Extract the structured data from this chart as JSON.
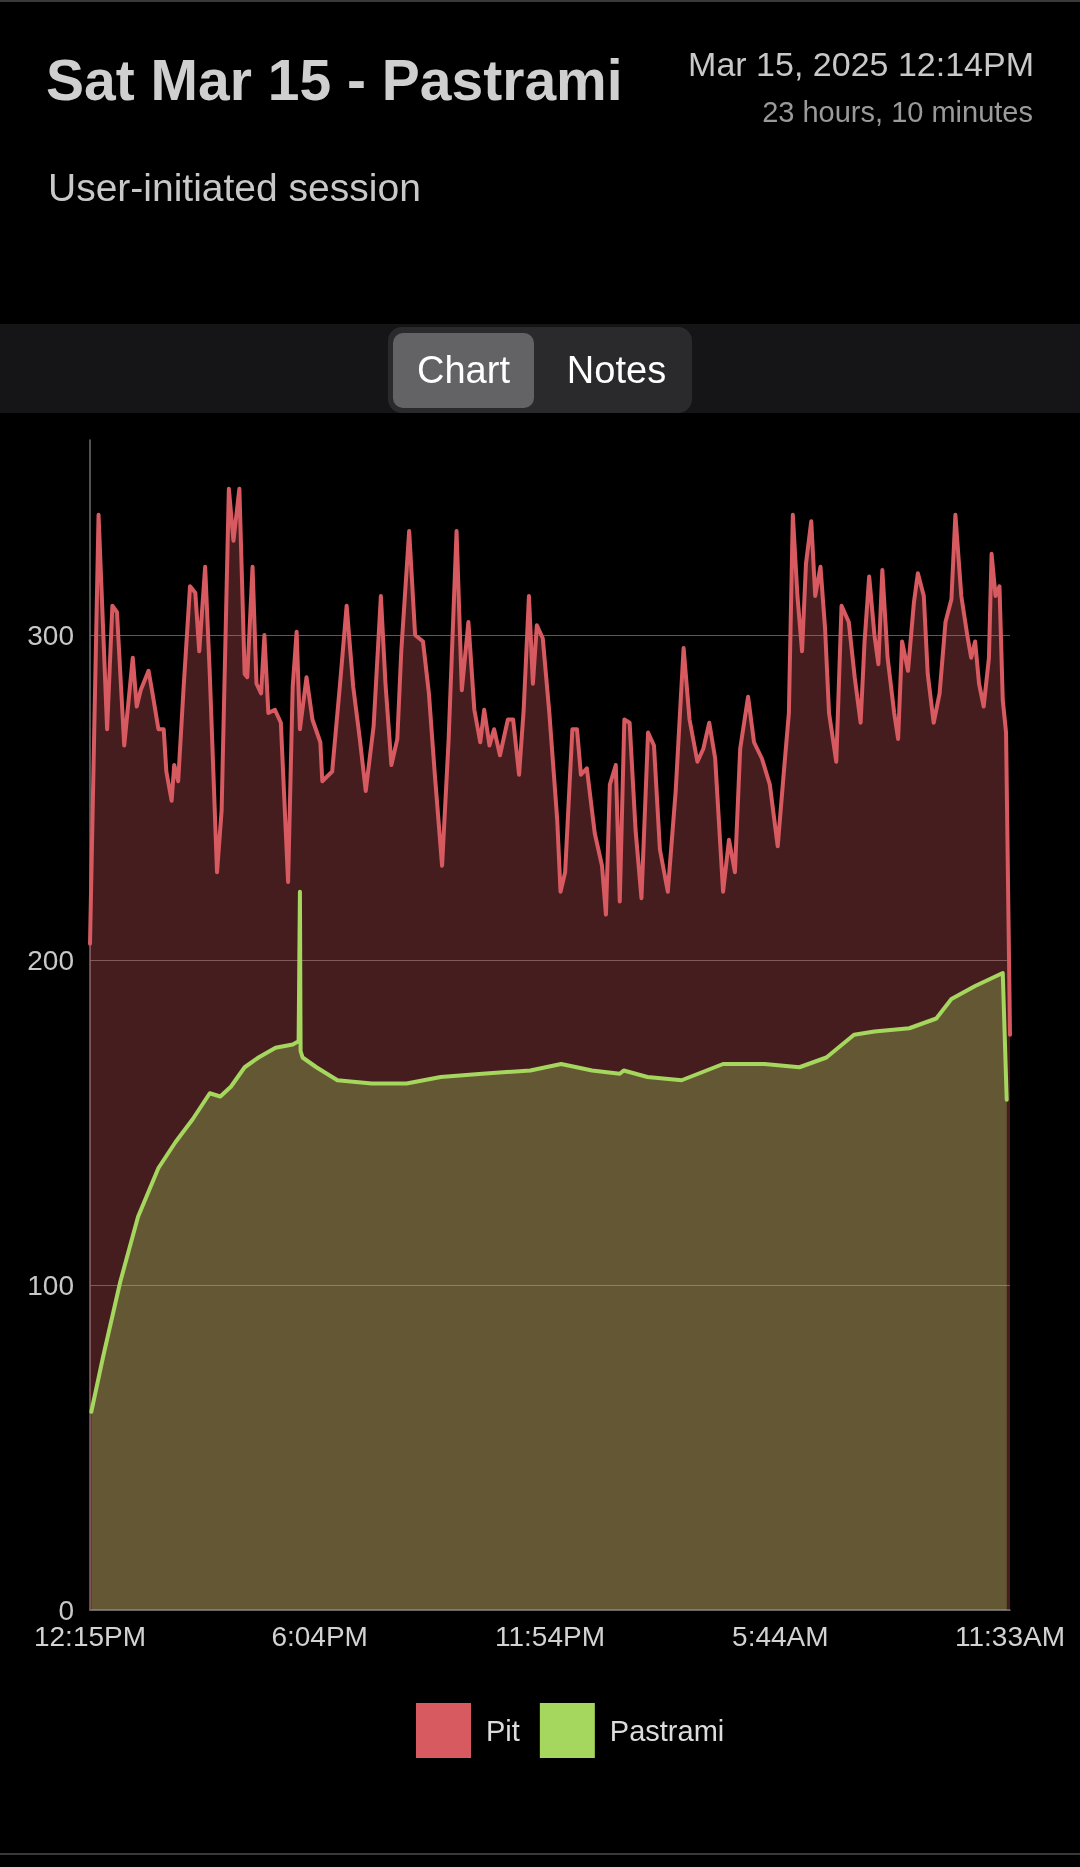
{
  "chart_data": {
    "type": "area",
    "title": "Sat Mar 15 - Pastrami",
    "subtitle": "User-initiated session",
    "annotations": [
      "Mar 15, 2025 12:14PM",
      "23 hours, 10 minutes",
      "Chart",
      "Notes"
    ],
    "xlim": [
      "2025-03-15T12:15",
      "2025-03-16T11:33"
    ],
    "xticks": [
      {
        "value": "2025-03-15T12:15",
        "label": "12:15PM"
      },
      {
        "value": "2025-03-15T18:04",
        "label": "6:04PM"
      },
      {
        "value": "2025-03-15T23:54",
        "label": "11:54PM"
      },
      {
        "value": "2025-03-16T05:44",
        "label": "5:44AM"
      },
      {
        "value": "2025-03-16T11:33",
        "label": "11:33AM"
      }
    ],
    "ylim": [
      0,
      360
    ],
    "yticks": [
      0,
      100,
      200,
      300
    ],
    "grid": "y",
    "legend": "bottom",
    "marker": "none",
    "line_style": "solid",
    "series": [
      {
        "name": "Pit",
        "color": "#d65a60",
        "x": [
          "2025-03-15T12:15",
          "2025-03-15T12:28",
          "2025-03-15T12:41",
          "2025-03-15T12:49",
          "2025-03-15T12:56",
          "2025-03-15T13:07",
          "2025-03-15T13:20",
          "2025-03-15T13:26",
          "2025-03-15T13:32",
          "2025-03-15T13:44",
          "2025-03-15T13:50",
          "2025-03-15T13:59",
          "2025-03-15T14:07",
          "2025-03-15T14:11",
          "2025-03-15T14:19",
          "2025-03-15T14:23",
          "2025-03-15T14:29",
          "2025-03-15T14:37",
          "2025-03-15T14:47",
          "2025-03-15T14:55",
          "2025-03-15T15:01",
          "2025-03-15T15:10",
          "2025-03-15T15:17",
          "2025-03-15T15:28",
          "2025-03-15T15:35",
          "2025-03-15T15:46",
          "2025-03-15T15:53",
          "2025-03-15T16:02",
          "2025-03-15T16:10",
          "2025-03-15T16:14",
          "2025-03-15T16:22",
          "2025-03-15T16:28",
          "2025-03-15T16:35",
          "2025-03-15T16:40",
          "2025-03-15T16:46",
          "2025-03-15T16:56",
          "2025-03-15T17:05",
          "2025-03-15T17:16",
          "2025-03-15T17:23",
          "2025-03-15T17:29",
          "2025-03-15T17:34",
          "2025-03-15T17:44",
          "2025-03-15T17:53",
          "2025-03-15T18:05",
          "2025-03-15T18:08",
          "2025-03-15T18:23",
          "2025-03-15T18:35",
          "2025-03-15T18:45",
          "2025-03-15T18:55",
          "2025-03-15T19:05",
          "2025-03-15T19:14",
          "2025-03-15T19:26",
          "2025-03-15T19:37",
          "2025-03-15T19:44",
          "2025-03-15T19:53",
          "2025-03-15T20:02",
          "2025-03-15T20:08",
          "2025-03-15T20:20",
          "2025-03-15T20:29",
          "2025-03-15T20:41",
          "2025-03-15T20:50",
          "2025-03-15T20:59",
          "2025-03-15T21:10",
          "2025-03-15T21:20",
          "2025-03-15T21:32",
          "2025-03-15T21:40",
          "2025-03-15T21:50",
          "2025-03-15T21:59",
          "2025-03-15T22:08",
          "2025-03-15T22:14",
          "2025-03-15T22:22",
          "2025-03-15T22:29",
          "2025-03-15T22:38",
          "2025-03-15T22:50",
          "2025-03-15T22:58",
          "2025-03-15T23:07",
          "2025-03-15T23:14",
          "2025-03-15T23:22",
          "2025-03-15T23:28",
          "2025-03-15T23:34",
          "2025-03-15T23:43",
          "2025-03-15T23:53",
          "2025-03-16T00:05",
          "2025-03-16T00:10",
          "2025-03-16T00:17",
          "2025-03-16T00:28",
          "2025-03-16T00:35",
          "2025-03-16T00:41",
          "2025-03-16T00:50",
          "2025-03-16T01:02",
          "2025-03-16T01:13",
          "2025-03-16T01:19",
          "2025-03-16T01:25",
          "2025-03-16T01:34",
          "2025-03-16T01:40",
          "2025-03-16T01:47",
          "2025-03-16T01:55",
          "2025-03-16T02:04",
          "2025-03-16T02:13",
          "2025-03-16T02:23",
          "2025-03-16T02:32",
          "2025-03-16T02:41",
          "2025-03-16T02:53",
          "2025-03-16T03:05",
          "2025-03-16T03:17",
          "2025-03-16T03:26",
          "2025-03-16T03:38",
          "2025-03-16T03:47",
          "2025-03-16T03:56",
          "2025-03-16T04:05",
          "2025-03-16T04:17",
          "2025-03-16T04:26",
          "2025-03-16T04:35",
          "2025-03-16T04:43",
          "2025-03-16T04:55",
          "2025-03-16T05:04",
          "2025-03-16T05:16",
          "2025-03-16T05:28",
          "2025-03-16T05:40",
          "2025-03-16T05:49",
          "2025-03-16T05:57",
          "2025-03-16T06:03",
          "2025-03-16T06:10",
          "2025-03-16T06:17",
          "2025-03-16T06:23",
          "2025-03-16T06:31",
          "2025-03-16T06:37",
          "2025-03-16T06:45",
          "2025-03-16T06:52",
          "2025-03-16T06:58",
          "2025-03-16T07:09",
          "2025-03-16T07:17",
          "2025-03-16T07:28",
          "2025-03-16T07:37",
          "2025-03-16T07:46",
          "2025-03-16T07:52",
          "2025-03-16T07:59",
          "2025-03-16T08:07",
          "2025-03-16T08:13",
          "2025-03-16T08:19",
          "2025-03-16T08:27",
          "2025-03-16T08:37",
          "2025-03-16T08:43",
          "2025-03-16T08:49",
          "2025-03-16T08:58",
          "2025-03-16T09:07",
          "2025-03-16T09:13",
          "2025-03-16T09:22",
          "2025-03-16T09:28",
          "2025-03-16T09:37",
          "2025-03-16T09:46",
          "2025-03-16T09:55",
          "2025-03-16T10:04",
          "2025-03-16T10:10",
          "2025-03-16T10:19",
          "2025-03-16T10:28",
          "2025-03-16T10:34",
          "2025-03-16T10:40",
          "2025-03-16T10:46",
          "2025-03-16T10:53",
          "2025-03-16T11:01",
          "2025-03-16T11:05",
          "2025-03-16T11:11",
          "2025-03-16T11:17",
          "2025-03-16T11:22",
          "2025-03-16T11:27",
          "2025-03-16T11:33"
        ],
        "values": [
          205,
          337,
          271,
          309,
          307,
          266,
          293,
          278,
          283,
          289,
          282,
          271,
          271,
          258,
          249,
          260,
          255,
          283,
          315,
          313,
          295,
          321,
          288,
          227,
          246,
          345,
          329,
          345,
          288,
          287,
          321,
          285,
          282,
          300,
          276,
          277,
          273,
          224,
          284,
          301,
          271,
          287,
          274,
          267,
          255,
          258,
          285,
          309,
          284,
          268,
          252,
          272,
          312,
          285,
          260,
          268,
          295,
          332,
          300,
          298,
          282,
          257,
          229,
          268,
          332,
          283,
          304,
          277,
          267,
          277,
          266,
          271,
          263,
          274,
          274,
          257,
          277,
          312,
          285,
          303,
          299,
          276,
          243,
          221,
          227,
          271,
          271,
          257,
          259,
          239,
          229,
          214,
          254,
          260,
          218,
          274,
          273,
          240,
          219,
          270,
          266,
          234,
          221,
          252,
          296,
          274,
          261,
          265,
          273,
          262,
          221,
          237,
          227,
          265,
          281,
          267,
          262,
          254,
          235,
          257,
          276,
          337,
          312,
          295,
          322,
          335,
          312,
          321,
          302,
          276,
          261,
          309,
          304,
          287,
          273,
          298,
          318,
          300,
          291,
          320,
          293,
          276,
          268,
          298,
          289,
          310,
          319,
          312,
          288,
          273,
          282,
          304,
          311,
          337,
          312,
          300,
          293,
          298,
          285,
          278,
          293,
          325,
          312,
          315,
          280,
          270,
          177
        ]
      },
      {
        "name": "Pastrami",
        "color": "#a5d65e",
        "x": [
          "2025-03-15T12:17",
          "2025-03-15T12:35",
          "2025-03-15T13:01",
          "2025-03-15T13:28",
          "2025-03-15T13:59",
          "2025-03-15T14:25",
          "2025-03-15T14:51",
          "2025-03-15T15:17",
          "2025-03-15T15:33",
          "2025-03-15T15:49",
          "2025-03-15T16:10",
          "2025-03-15T16:31",
          "2025-03-15T16:57",
          "2025-03-15T17:23",
          "2025-03-15T17:32",
          "2025-03-15T17:34",
          "2025-03-15T17:35",
          "2025-03-15T17:38",
          "2025-03-15T17:59",
          "2025-03-15T18:31",
          "2025-03-15T19:23",
          "2025-03-15T20:16",
          "2025-03-15T21:08",
          "2025-03-15T22:11",
          "2025-03-15T23:24",
          "2025-03-16T00:11",
          "2025-03-16T00:58",
          "2025-03-16T01:40",
          "2025-03-16T01:46",
          "2025-03-16T02:22",
          "2025-03-16T03:14",
          "2025-03-16T04:17",
          "2025-03-16T05:20",
          "2025-03-16T06:13",
          "2025-03-16T06:54",
          "2025-03-16T07:36",
          "2025-03-16T08:07",
          "2025-03-16T09:00",
          "2025-03-16T09:41",
          "2025-03-16T10:04",
          "2025-03-16T10:40",
          "2025-03-16T11:22",
          "2025-03-16T11:28"
        ],
        "values": [
          61,
          78,
          101,
          121,
          136,
          144,
          151,
          159,
          158,
          161,
          167,
          170,
          173,
          174,
          175,
          221,
          172,
          170,
          167,
          163,
          162,
          162,
          164,
          165,
          166,
          168,
          166,
          165,
          166,
          164,
          163,
          168,
          168,
          167,
          170,
          177,
          178,
          179,
          182,
          188,
          192,
          196,
          157
        ]
      }
    ]
  }
}
